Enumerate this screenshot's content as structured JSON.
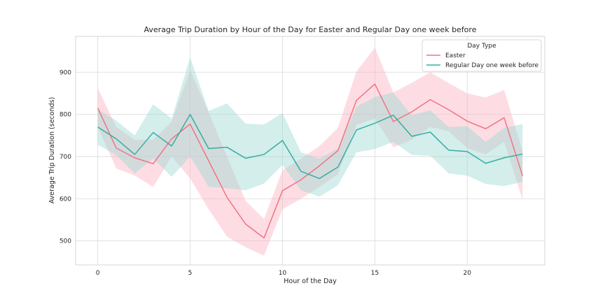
{
  "chart_data": {
    "type": "line",
    "title": "Average Trip Duration by Hour of the Day for Easter and Regular Day one week before",
    "xlabel": "Hour of the Day",
    "ylabel": "Average Trip Duration (seconds)",
    "xlim": [
      -1.2,
      24.2
    ],
    "ylim": [
      443,
      985
    ],
    "x_ticks": [
      0,
      5,
      10,
      15,
      20
    ],
    "y_ticks": [
      500,
      600,
      700,
      800,
      900
    ],
    "grid": true,
    "legend": {
      "title": "Day Type",
      "placement": "top-right"
    },
    "x": [
      0,
      1,
      2,
      3,
      4,
      5,
      6,
      7,
      8,
      9,
      10,
      11,
      12,
      13,
      14,
      15,
      16,
      17,
      18,
      19,
      20,
      21,
      22,
      23
    ],
    "series": [
      {
        "name": "Easter",
        "color": "#f07484",
        "band_color": "#fbb4c0",
        "values": [
          815,
          720,
          697,
          683,
          742,
          777,
          690,
          603,
          540,
          507,
          619,
          645,
          678,
          714,
          833,
          872,
          783,
          806,
          835,
          811,
          784,
          766,
          792,
          654
        ],
        "lower": [
          770,
          672,
          655,
          628,
          700,
          648,
          575,
          510,
          485,
          465,
          575,
          600,
          628,
          658,
          775,
          790,
          722,
          740,
          770,
          760,
          720,
          705,
          735,
          598
        ],
        "upper": [
          862,
          770,
          740,
          740,
          783,
          905,
          805,
          700,
          595,
          552,
          668,
          695,
          725,
          768,
          902,
          958,
          852,
          875,
          900,
          874,
          850,
          840,
          858,
          712
        ]
      },
      {
        "name": "Regular Day one week before",
        "color": "#36ada4",
        "band_color": "#9dd9d2",
        "values": [
          770,
          742,
          705,
          757,
          725,
          800,
          719,
          722,
          696,
          705,
          738,
          665,
          648,
          675,
          763,
          779,
          798,
          748,
          758,
          715,
          712,
          684,
          697,
          706
        ],
        "lower": [
          728,
          703,
          660,
          695,
          652,
          700,
          628,
          625,
          620,
          636,
          680,
          620,
          605,
          632,
          710,
          718,
          735,
          704,
          702,
          660,
          655,
          635,
          630,
          640
        ],
        "upper": [
          812,
          785,
          750,
          824,
          790,
          935,
          808,
          826,
          778,
          776,
          803,
          710,
          695,
          720,
          818,
          841,
          852,
          798,
          810,
          770,
          772,
          735,
          768,
          777
        ]
      }
    ]
  }
}
